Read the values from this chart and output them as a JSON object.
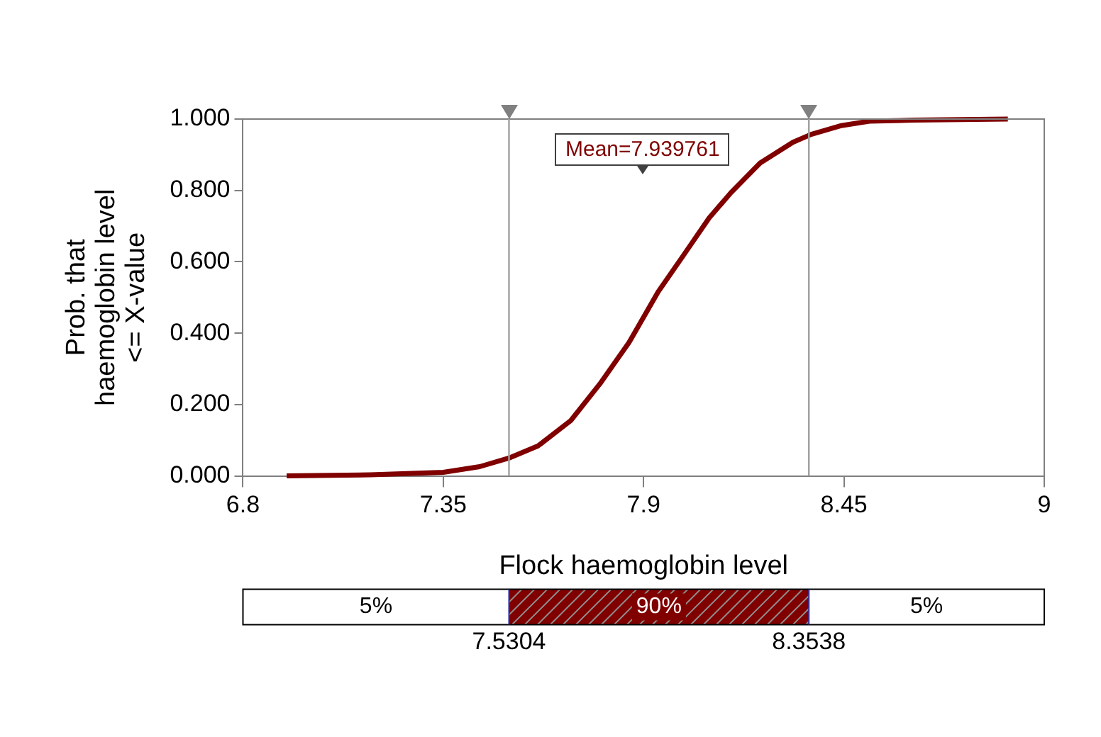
{
  "chart_data": {
    "type": "line",
    "xlabel": "Flock haemoglobin level",
    "ylabel": "Prob. that haemoglobin level <= X-value",
    "x": [
      6.92,
      7.15,
      7.35,
      7.45,
      7.53,
      7.61,
      7.7,
      7.78,
      7.86,
      7.94,
      8.01,
      8.08,
      8.14,
      8.22,
      8.31,
      8.36,
      8.44,
      8.52,
      8.64,
      8.9
    ],
    "series": [
      {
        "color": "#800000",
        "values": [
          0,
          0.003,
          0.01,
          0.026,
          0.05,
          0.084,
          0.155,
          0.258,
          0.374,
          0.516,
          0.619,
          0.723,
          0.794,
          0.877,
          0.935,
          0.957,
          0.981,
          0.994,
          0.997,
          1.0
        ]
      }
    ],
    "xlim": [
      6.8,
      9
    ],
    "xticks": [
      6.8,
      7.35,
      7.9,
      8.45,
      9
    ],
    "ylim": [
      0,
      1
    ],
    "yticks": [
      {
        "value": 0,
        "label": "0.000"
      },
      {
        "value": 0.2,
        "label": "0.200"
      },
      {
        "value": 0.4,
        "label": "0.400"
      },
      {
        "value": 0.6,
        "label": "0.600"
      },
      {
        "value": 0.8,
        "label": "0.800"
      },
      {
        "value": 1,
        "label": "1.000"
      }
    ],
    "grid": false,
    "legend": false,
    "marker": "none",
    "line_style": "solid",
    "ref_lines": [
      {
        "axis": "x",
        "value": 7.5304,
        "color": "#a0a0a0"
      },
      {
        "axis": "x",
        "value": 8.3538,
        "color": "#a0a0a0"
      }
    ],
    "annotations": [
      "Mean=7.939761",
      "5%",
      "90%",
      "5%",
      "7.5304",
      "8.3538"
    ]
  }
}
